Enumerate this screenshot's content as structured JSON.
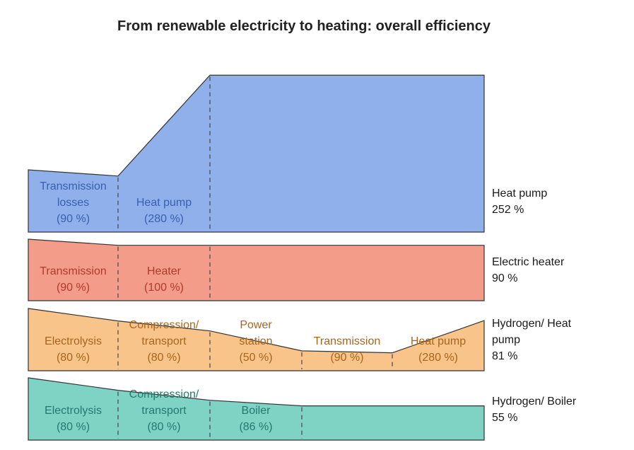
{
  "title": "From renewable electricity to heating: overall efficiency",
  "chart_data": {
    "type": "area",
    "title": "From renewable electricity to heating: overall efficiency",
    "pathways": [
      {
        "id": "heat-pump",
        "color": "#8fb0ea",
        "text_color": "#3b5fae",
        "levels": [
          1.0,
          0.9,
          2.52
        ],
        "result": [
          "Heat pump",
          "252 %"
        ],
        "stages": [
          {
            "lines": [
              "Transmission",
              "losses",
              "(90 %)"
            ]
          },
          {
            "lines": [
              "Heat pump",
              "(280 %)"
            ]
          }
        ]
      },
      {
        "id": "electric-heater",
        "color": "#f39c8a",
        "text_color": "#b23a2a",
        "levels": [
          1.0,
          0.9,
          0.9
        ],
        "result": [
          "Electric heater",
          "90 %"
        ],
        "stages": [
          {
            "lines": [
              "Transmission",
              "(90 %)"
            ]
          },
          {
            "lines": [
              "Heater",
              "(100 %)"
            ]
          }
        ]
      },
      {
        "id": "hydrogen-heat-pump",
        "color": "#f8c48a",
        "text_color": "#a8661c",
        "levels": [
          1.0,
          0.8,
          0.64,
          0.32,
          0.288,
          0.806
        ],
        "result": [
          "Hydrogen/ Heat",
          "pump",
          "81 %"
        ],
        "stages": [
          {
            "lines": [
              "Electrolysis",
              "(80 %)"
            ]
          },
          {
            "lines": [
              "Compression/",
              "transport",
              "(80 %)"
            ]
          },
          {
            "lines": [
              "Power",
              "station",
              "(50 %)"
            ]
          },
          {
            "lines": [
              "Transmission",
              "(90 %)"
            ]
          },
          {
            "lines": [
              "Heat pump",
              "(280 %)"
            ]
          }
        ]
      },
      {
        "id": "hydrogen-boiler",
        "color": "#7fd3c4",
        "text_color": "#237a6c",
        "levels": [
          1.0,
          0.8,
          0.64,
          0.55
        ],
        "result": [
          "Hydrogen/ Boiler",
          "55 %"
        ],
        "stages": [
          {
            "lines": [
              "Electrolysis",
              "(80 %)"
            ]
          },
          {
            "lines": [
              "Compression/",
              "transport",
              "(80 %)"
            ]
          },
          {
            "lines": [
              "Boiler",
              "(86 %)"
            ]
          }
        ]
      }
    ]
  }
}
